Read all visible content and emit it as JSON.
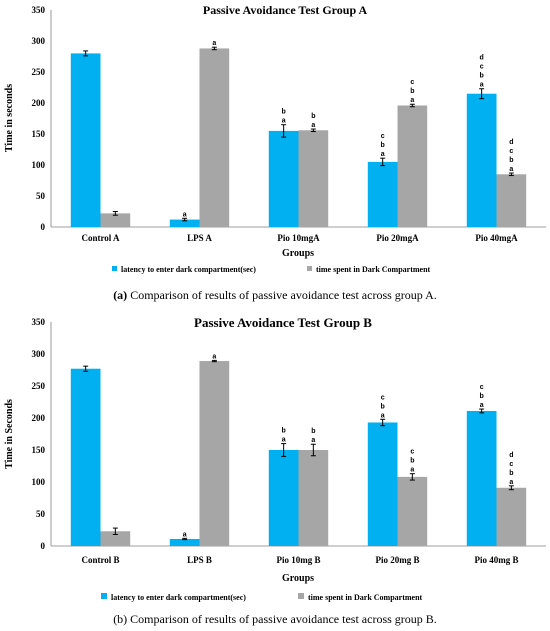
{
  "colors": {
    "series1": "#00B0F0",
    "series2": "#A6A6A6",
    "axis": "#7f7f7f",
    "errbar": "#000000"
  },
  "chart_data": [
    {
      "type": "bar",
      "title": "Passive Avoidance Test Group A",
      "xlabel": "Groups",
      "ylabel": "Time in seconds",
      "ylim": [
        0,
        350
      ],
      "yticks": [
        "0",
        "50",
        "100",
        "150",
        "200",
        "250",
        "300",
        "350"
      ],
      "grid": false,
      "legend_position": "bottom",
      "categories": [
        "Control A",
        "LPS A",
        "Pio 10mgA",
        "Pio 20mgA",
        "Pio 40mgA"
      ],
      "series": [
        {
          "name": "latency to enter dark compartment(sec)",
          "values": [
            280,
            12,
            155,
            105,
            215
          ],
          "errors": [
            4,
            2,
            10,
            6,
            8
          ],
          "labels": [
            [],
            [
              "a"
            ],
            [
              "b",
              "a"
            ],
            [
              "c",
              "b",
              "a"
            ],
            [
              "d",
              "c",
              "b",
              "a"
            ]
          ]
        },
        {
          "name": "time spent in Dark Compartment",
          "values": [
            22,
            288,
            156,
            196,
            85
          ],
          "errors": [
            3,
            2,
            2,
            2,
            2
          ],
          "labels": [
            [],
            [
              "a"
            ],
            [
              "b",
              "a"
            ],
            [
              "c",
              "b",
              "a"
            ],
            [
              "d",
              "c",
              "b",
              "a"
            ]
          ]
        }
      ],
      "caption_label": "(a)",
      "caption_text": " Comparison of results of passive avoidance test across group A."
    },
    {
      "type": "bar",
      "title": "Passive Avoidance Test Group B",
      "xlabel": "Groups",
      "ylabel": "Time in Seconds",
      "ylim": [
        0,
        350
      ],
      "yticks": [
        "0",
        "50",
        "100",
        "150",
        "200",
        "250",
        "300",
        "350"
      ],
      "grid": false,
      "legend_position": "bottom",
      "categories": [
        "Control B",
        "LPS B",
        "Pio 10mg B",
        "Pio 20mg B",
        "Pio 40mg B"
      ],
      "series": [
        {
          "name": "latency to enter dark compartment(sec)",
          "values": [
            277,
            11,
            150,
            193,
            211
          ],
          "errors": [
            4,
            1,
            10,
            5,
            3
          ],
          "labels": [
            [],
            [
              "a"
            ],
            [
              "b",
              "a"
            ],
            [
              "c",
              "b",
              "a"
            ],
            [
              "c",
              "b",
              "a"
            ]
          ]
        },
        {
          "name": "time spent in Dark Compartment",
          "values": [
            23,
            289,
            150,
            108,
            91
          ],
          "errors": [
            5,
            1,
            9,
            5,
            3
          ],
          "labels": [
            [],
            [
              "a"
            ],
            [
              "b",
              "a"
            ],
            [
              "c",
              "b",
              "a"
            ],
            [
              "d",
              "c",
              "b",
              "a"
            ]
          ]
        }
      ],
      "caption_label": "",
      "caption_text": "(b) Comparison of results of passive avoidance test across group B."
    }
  ]
}
